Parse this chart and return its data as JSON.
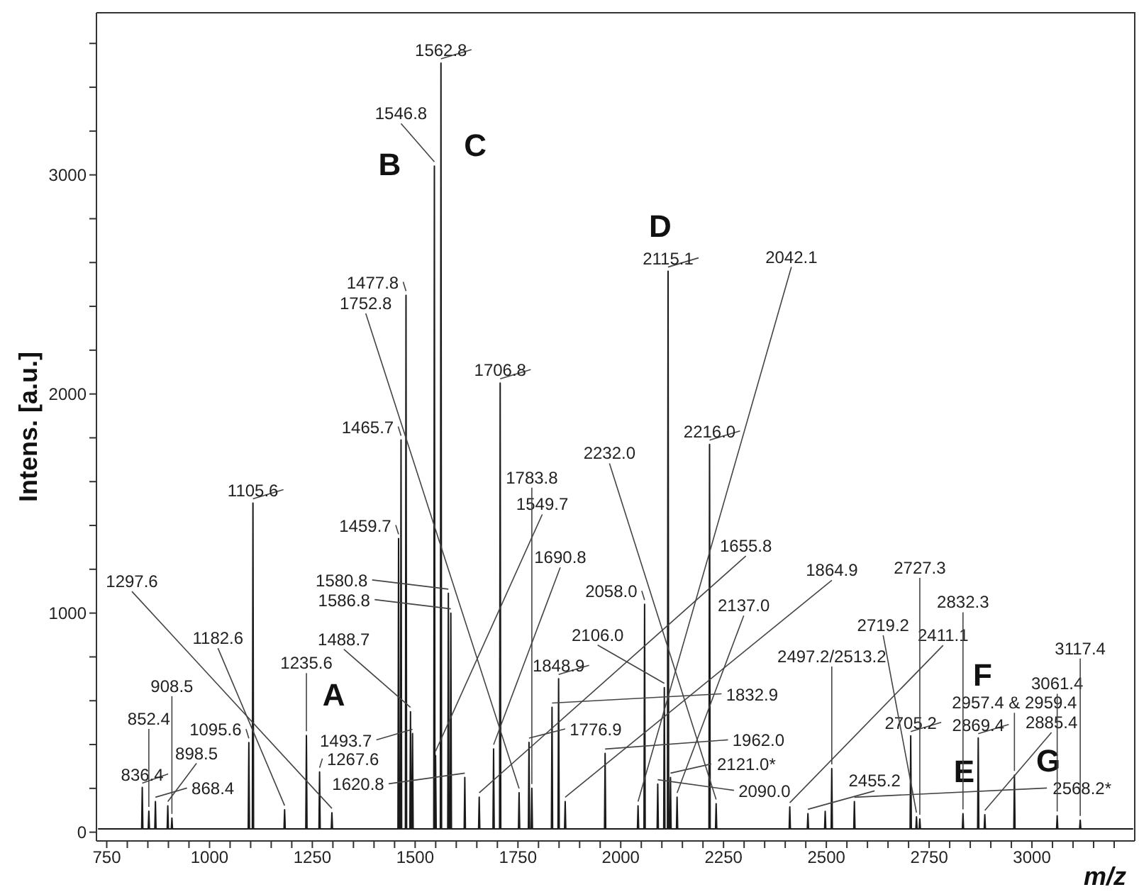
{
  "chart_data": {
    "type": "line",
    "xlabel": "m/z",
    "ylabel": "Intens. [a.u.]",
    "marker": "none",
    "xlim": [
      725,
      3250
    ],
    "ylim": [
      -40,
      3740
    ],
    "xticks": [
      750,
      {
        "value": 800,
        "label": null
      },
      {
        "value": 850,
        "label": null
      },
      {
        "value": 900,
        "label": null
      },
      {
        "value": 950,
        "label": null
      },
      1000,
      {
        "value": 1050,
        "label": null
      },
      {
        "value": 1100,
        "label": null
      },
      {
        "value": 1150,
        "label": null
      },
      {
        "value": 1200,
        "label": null
      },
      1250,
      {
        "value": 1300,
        "label": null
      },
      {
        "value": 1350,
        "label": null
      },
      {
        "value": 1400,
        "label": null
      },
      {
        "value": 1450,
        "label": null
      },
      1500,
      {
        "value": 1550,
        "label": null
      },
      {
        "value": 1600,
        "label": null
      },
      {
        "value": 1650,
        "label": null
      },
      {
        "value": 1700,
        "label": null
      },
      1750,
      {
        "value": 1800,
        "label": null
      },
      {
        "value": 1850,
        "label": null
      },
      {
        "value": 1900,
        "label": null
      },
      {
        "value": 1950,
        "label": null
      },
      2000,
      {
        "value": 2050,
        "label": null
      },
      {
        "value": 2100,
        "label": null
      },
      {
        "value": 2150,
        "label": null
      },
      {
        "value": 2200,
        "label": null
      },
      2250,
      {
        "value": 2300,
        "label": null
      },
      {
        "value": 2350,
        "label": null
      },
      {
        "value": 2400,
        "label": null
      },
      {
        "value": 2450,
        "label": null
      },
      2500,
      {
        "value": 2550,
        "label": null
      },
      {
        "value": 2600,
        "label": null
      },
      {
        "value": 2650,
        "label": null
      },
      {
        "value": 2700,
        "label": null
      },
      2750,
      {
        "value": 2800,
        "label": null
      },
      {
        "value": 2850,
        "label": null
      },
      {
        "value": 2900,
        "label": null
      },
      {
        "value": 2950,
        "label": null
      },
      3000,
      {
        "value": 3050,
        "label": null
      },
      {
        "value": 3100,
        "label": null
      },
      {
        "value": 3150,
        "label": null
      },
      {
        "value": 3200,
        "label": null
      }
    ],
    "yticks": [
      0,
      {
        "value": 200,
        "label": null
      },
      {
        "value": 400,
        "label": null
      },
      {
        "value": 600,
        "label": null
      },
      {
        "value": 800,
        "label": null
      },
      1000,
      {
        "value": 1200,
        "label": null
      },
      {
        "value": 1400,
        "label": null
      },
      {
        "value": 1600,
        "label": null
      },
      {
        "value": 1800,
        "label": null
      },
      2000,
      {
        "value": 2200,
        "label": null
      },
      {
        "value": 2400,
        "label": null
      },
      {
        "value": 2600,
        "label": null
      },
      {
        "value": 2800,
        "label": null
      },
      3000,
      {
        "value": 3200,
        "label": null
      },
      {
        "value": 3400,
        "label": null
      },
      {
        "value": 3600,
        "label": null
      }
    ],
    "series": [
      {
        "color": "#1a1a1a",
        "x": [
          730,
          834.9,
          836.4,
          837.9,
          850.9,
          852.4,
          853.9,
          866.9,
          868.4,
          869.9,
          897,
          898.5,
          900,
          907,
          908.5,
          910,
          1094.1,
          1095.6,
          1097.1,
          1104.1,
          1105.6,
          1107.1,
          1181.1,
          1182.6,
          1184.1,
          1234.1,
          1235.6,
          1237.1,
          1266.1,
          1267.6,
          1269.1,
          1296.1,
          1297.6,
          1299.1,
          1458.2,
          1459.7,
          1461.2,
          1464.2,
          1465.7,
          1467.2,
          1476.3,
          1477.8,
          1479.3,
          1487.2,
          1488.7,
          1490.2,
          1492.2,
          1493.7,
          1495.2,
          1545.3,
          1546.8,
          1548.2,
          1549.7,
          1551.2,
          1561.3,
          1562.8,
          1564.3,
          1579.3,
          1580.8,
          1582.3,
          1585.3,
          1586.8,
          1588.3,
          1619.3,
          1620.8,
          1622.3,
          1654.3,
          1655.8,
          1657.3,
          1689.3,
          1690.8,
          1692.3,
          1705.3,
          1706.8,
          1708.3,
          1751.3,
          1752.8,
          1754.3,
          1775.4,
          1776.9,
          1778.4,
          1782.3,
          1783.8,
          1785.3,
          1831.4,
          1832.9,
          1834.4,
          1847.4,
          1848.9,
          1850.4,
          1863.4,
          1864.9,
          1866.4,
          1960.5,
          1962.0,
          1963.5,
          2040.6,
          2042.1,
          2043.6,
          2056.5,
          2058.0,
          2059.5,
          2088.5,
          2090.0,
          2091.5,
          2104.5,
          2106.0,
          2107.5,
          2113.6,
          2115.1,
          2116.6,
          2119.5,
          2121.0,
          2122.5,
          2135.5,
          2137.0,
          2138.5,
          2214.5,
          2216.0,
          2217.5,
          2230.5,
          2232.0,
          2233.5,
          2409.6,
          2411.1,
          2412.6,
          2453.7,
          2455.2,
          2456.7,
          2495.7,
          2497.2,
          2498.7,
          2511.7,
          2513.2,
          2514.7,
          2566.7,
          2568.2,
          2569.7,
          2703.7,
          2705.2,
          2706.7,
          2717.7,
          2719.2,
          2720.7,
          2725.8,
          2727.3,
          2728.8,
          2830.8,
          2832.3,
          2833.8,
          2867.9,
          2869.4,
          2870.9,
          2883.9,
          2885.4,
          2886.9,
          2955.9,
          2957.4,
          2958.9,
          3059.9,
          3061.4,
          3062.9,
          3115.9,
          3117.4,
          3118.9,
          3245
        ],
        "values": [
          15,
          15,
          204,
          15,
          15,
          96,
          15,
          15,
          140,
          15,
          15,
          120,
          15,
          15,
          64,
          15,
          15,
          409,
          15,
          15,
          1502,
          15,
          15,
          102,
          15,
          15,
          441,
          15,
          15,
          275,
          15,
          15,
          89,
          15,
          15,
          1340,
          15,
          15,
          1790,
          15,
          15,
          2450,
          15,
          15,
          550,
          15,
          15,
          450,
          15,
          15,
          3040,
          15,
          350,
          15,
          15,
          3510,
          15,
          15,
          1090,
          15,
          15,
          1000,
          15,
          15,
          250,
          15,
          15,
          160,
          15,
          15,
          380,
          15,
          15,
          2050,
          15,
          15,
          180,
          15,
          15,
          410,
          15,
          15,
          200,
          15,
          15,
          570,
          15,
          15,
          700,
          15,
          15,
          140,
          15,
          15,
          360,
          15,
          15,
          120,
          15,
          15,
          1040,
          15,
          15,
          220,
          15,
          15,
          660,
          15,
          15,
          2560,
          15,
          15,
          250,
          15,
          15,
          160,
          15,
          15,
          1770,
          15,
          15,
          130,
          15,
          15,
          115,
          15,
          15,
          85,
          15,
          15,
          95,
          15,
          15,
          290,
          15,
          15,
          140,
          15,
          15,
          440,
          15,
          15,
          70,
          15,
          15,
          60,
          15,
          15,
          85,
          15,
          15,
          430,
          15,
          15,
          80,
          15,
          15,
          260,
          15,
          15,
          75,
          15,
          15,
          55,
          15,
          15
        ]
      }
    ],
    "annotations": [
      {
        "text": "836.4",
        "x": 836.4,
        "y": 204
      },
      {
        "text": "852.4",
        "x": 852.4,
        "y": 96
      },
      {
        "text": "868.4",
        "x": 868.4,
        "y": 140
      },
      {
        "text": "898.5",
        "x": 898.5,
        "y": 120
      },
      {
        "text": "908.5",
        "x": 908.5,
        "y": 64
      },
      {
        "text": "1095.6",
        "x": 1095.6,
        "y": 409
      },
      {
        "text": "1105.6",
        "x": 1105.6,
        "y": 1502
      },
      {
        "text": "1182.6",
        "x": 1182.6,
        "y": 102
      },
      {
        "text": "1235.6",
        "x": 1235.6,
        "y": 441
      },
      {
        "text": "1267.6",
        "x": 1267.6,
        "y": 275
      },
      {
        "text": "1297.6",
        "x": 1297.6,
        "y": 89
      },
      {
        "text": "1459.7",
        "x": 1459.7,
        "y": 1340
      },
      {
        "text": "1465.7",
        "x": 1465.7,
        "y": 1790
      },
      {
        "text": "1477.8",
        "x": 1477.8,
        "y": 2450
      },
      {
        "text": "1488.7",
        "x": 1488.7,
        "y": 550
      },
      {
        "text": "1493.7",
        "x": 1493.7,
        "y": 450
      },
      {
        "text": "1546.8",
        "x": 1546.8,
        "y": 3040
      },
      {
        "text": "1549.7",
        "x": 1549.7,
        "y": 350
      },
      {
        "text": "1562.8",
        "x": 1562.8,
        "y": 3510
      },
      {
        "text": "1580.8",
        "x": 1580.8,
        "y": 1090
      },
      {
        "text": "1586.8",
        "x": 1586.8,
        "y": 1000
      },
      {
        "text": "1620.8",
        "x": 1620.8,
        "y": 250
      },
      {
        "text": "1655.8",
        "x": 1655.8,
        "y": 160
      },
      {
        "text": "1690.8",
        "x": 1690.8,
        "y": 380
      },
      {
        "text": "1706.8",
        "x": 1706.8,
        "y": 2050
      },
      {
        "text": "1752.8",
        "x": 1752.8,
        "y": 180
      },
      {
        "text": "1776.9",
        "x": 1776.9,
        "y": 410
      },
      {
        "text": "1783.8",
        "x": 1783.8,
        "y": 200
      },
      {
        "text": "1832.9",
        "x": 1832.9,
        "y": 570
      },
      {
        "text": "1848.9",
        "x": 1848.9,
        "y": 700
      },
      {
        "text": "1864.9",
        "x": 1864.9,
        "y": 140
      },
      {
        "text": "1962.0",
        "x": 1962.0,
        "y": 360
      },
      {
        "text": "2042.1",
        "x": 2042.1,
        "y": 120
      },
      {
        "text": "2058.0",
        "x": 2058.0,
        "y": 1040
      },
      {
        "text": "2090.0",
        "x": 2090.0,
        "y": 220
      },
      {
        "text": "2106.0",
        "x": 2106.0,
        "y": 660
      },
      {
        "text": "2115.1",
        "x": 2115.1,
        "y": 2560
      },
      {
        "text": "2121.0*",
        "x": 2121.0,
        "y": 250
      },
      {
        "text": "2137.0",
        "x": 2137.0,
        "y": 160
      },
      {
        "text": "2216.0",
        "x": 2216.0,
        "y": 1770
      },
      {
        "text": "2232.0",
        "x": 2232.0,
        "y": 130
      },
      {
        "text": "2411.1",
        "x": 2411.1,
        "y": 115
      },
      {
        "text": "2455.2",
        "x": 2455.2,
        "y": 85
      },
      {
        "text": "2497.2/2513.2",
        "x": 2513.2,
        "y": 290
      },
      {
        "text": "2568.2*",
        "x": 2568.2,
        "y": 140
      },
      {
        "text": "2705.2",
        "x": 2705.2,
        "y": 440
      },
      {
        "text": "2719.2",
        "x": 2719.2,
        "y": 70
      },
      {
        "text": "2727.3",
        "x": 2727.3,
        "y": 60
      },
      {
        "text": "2832.3",
        "x": 2832.3,
        "y": 85
      },
      {
        "text": "2869.4",
        "x": 2869.4,
        "y": 430
      },
      {
        "text": "2885.4",
        "x": 2885.4,
        "y": 80
      },
      {
        "text": "2957.4 & 2959.4",
        "x": 2957.4,
        "y": 260
      },
      {
        "text": "3061.4",
        "x": 3061.4,
        "y": 75
      },
      {
        "text": "3117.4",
        "x": 3117.4,
        "y": 55
      },
      "A",
      "B",
      "C",
      "D",
      "E",
      "F",
      "G"
    ]
  }
}
